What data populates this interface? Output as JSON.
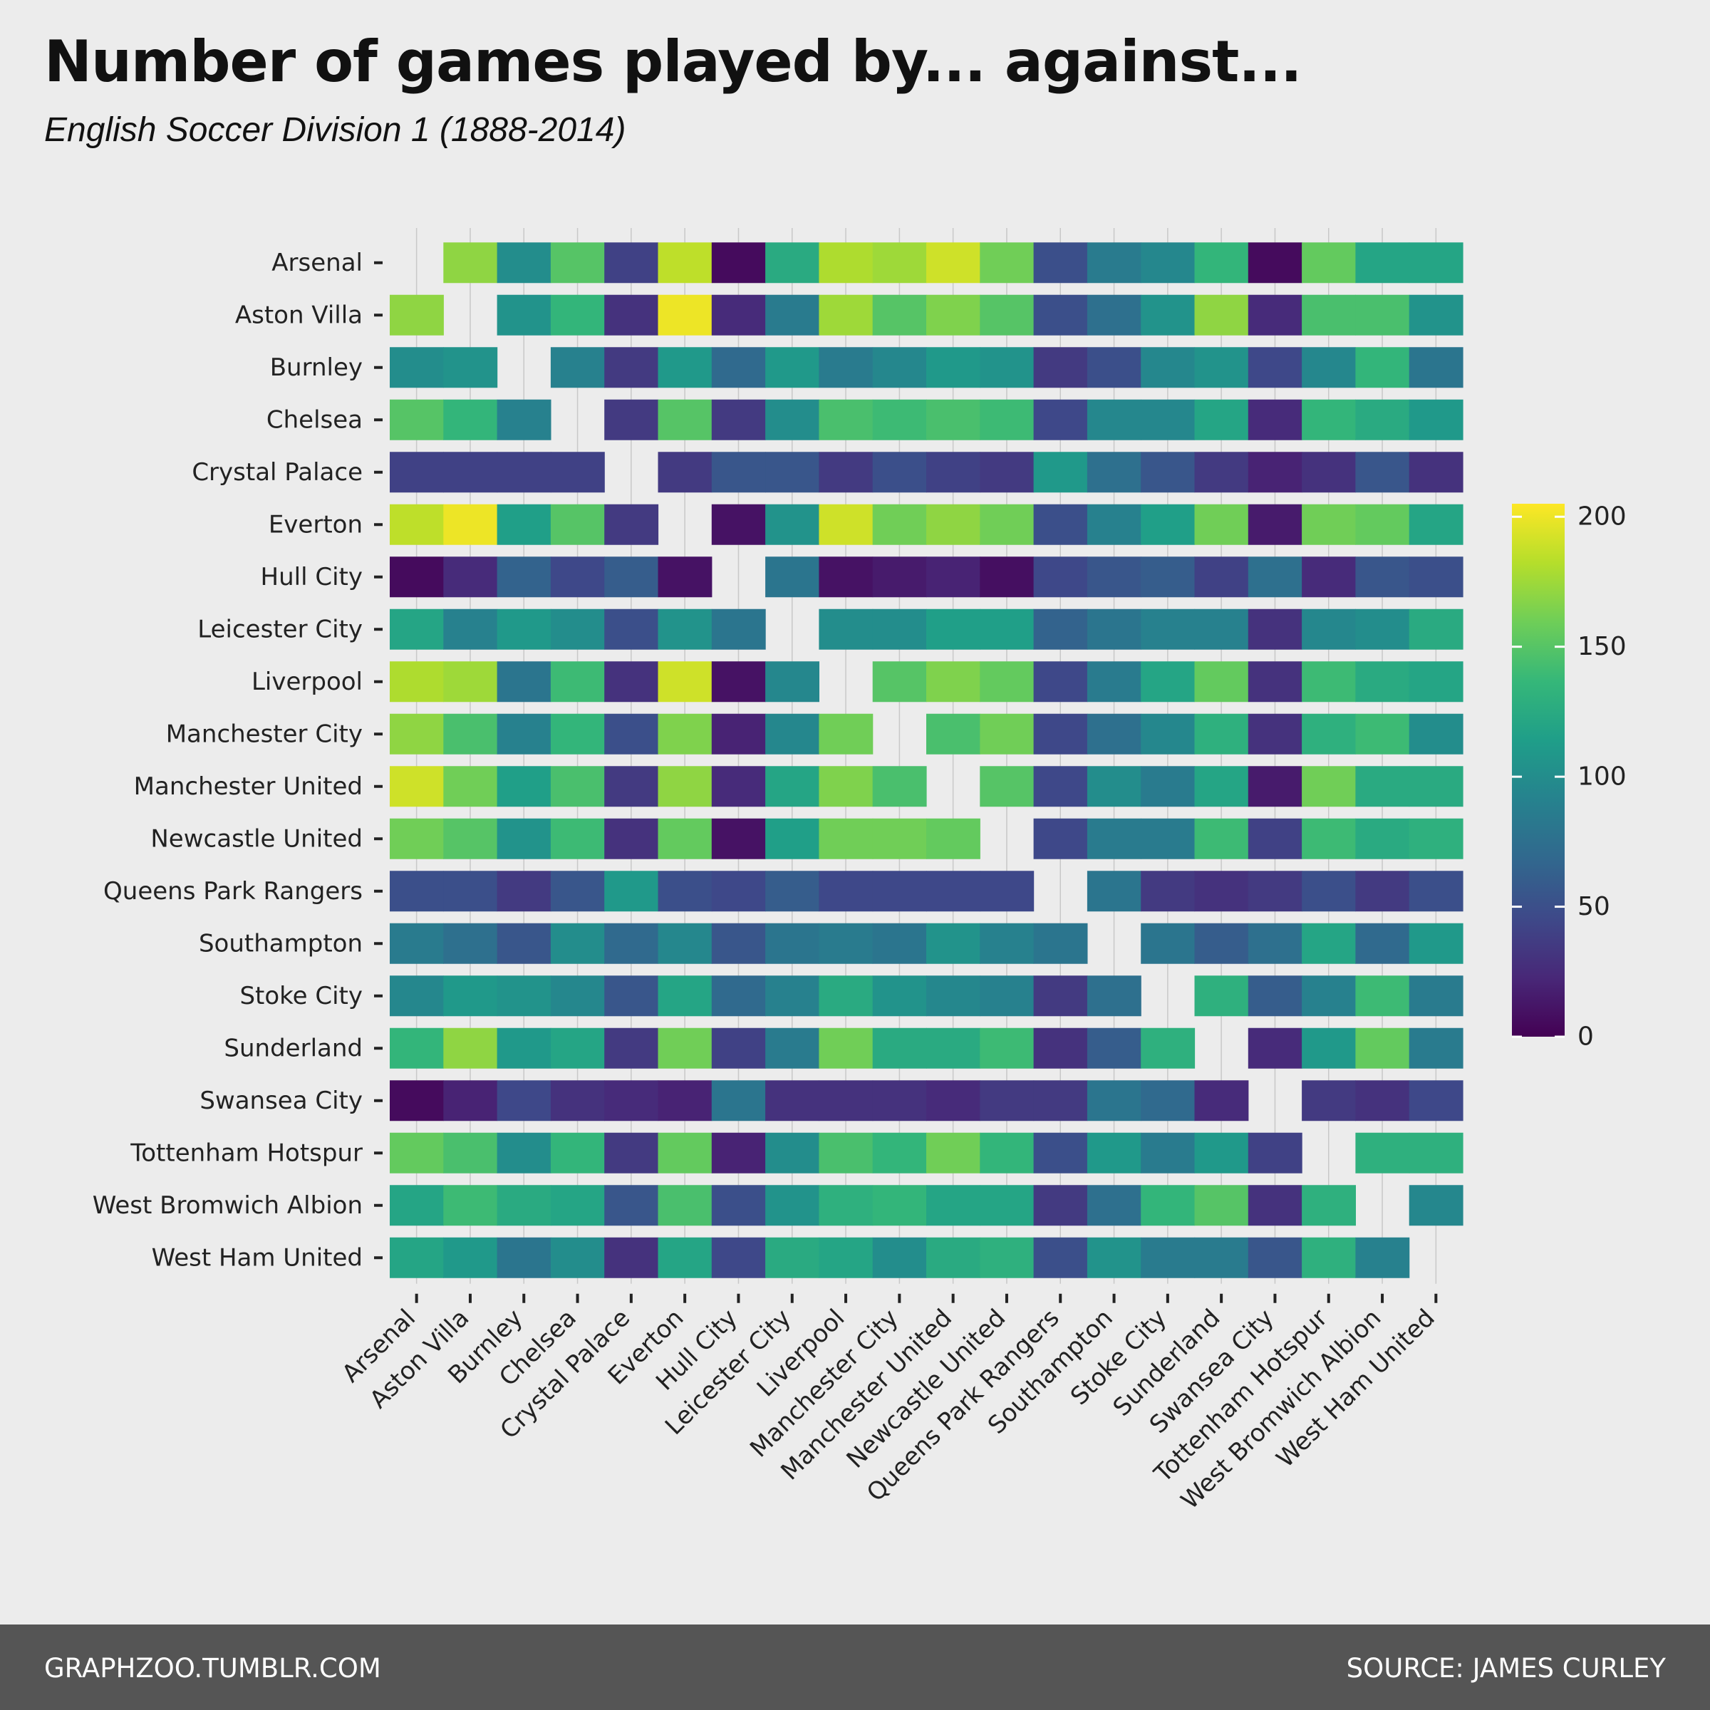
{
  "title": "Number of games played by... against...",
  "subtitle": "English Soccer Division 1 (1888-2014)",
  "footer": {
    "left": "GRAPHZOO.TUMBLR.COM",
    "right": "SOURCE: JAMES CURLEY"
  },
  "chart_data": {
    "type": "heatmap",
    "teams": [
      "Arsenal",
      "Aston Villa",
      "Burnley",
      "Chelsea",
      "Crystal Palace",
      "Everton",
      "Hull City",
      "Leicester City",
      "Liverpool",
      "Manchester City",
      "Manchester United",
      "Newcastle United",
      "Queens Park Rangers",
      "Southampton",
      "Stoke City",
      "Sunderland",
      "Swansea City",
      "Tottenham Hotspur",
      "West Bromwich Albion",
      "West Ham United"
    ],
    "x_categories": [
      "Arsenal",
      "Aston Villa",
      "Burnley",
      "Chelsea",
      "Crystal Palace",
      "Everton",
      "Hull City",
      "Leicester City",
      "Liverpool",
      "Manchester City",
      "Manchester United",
      "Newcastle United",
      "Queens Park Rangers",
      "Southampton",
      "Stoke City",
      "Sunderland",
      "Swansea City",
      "Tottenham Hotspur",
      "West Bromwich Albion",
      "West Ham United"
    ],
    "y_categories": [
      "Arsenal",
      "Aston Villa",
      "Burnley",
      "Chelsea",
      "Crystal Palace",
      "Everton",
      "Hull City",
      "Leicester City",
      "Liverpool",
      "Manchester City",
      "Manchester United",
      "Newcastle United",
      "Queens Park Rangers",
      "Southampton",
      "Stoke City",
      "Sunderland",
      "Swansea City",
      "Tottenham Hotspur",
      "West Bromwich Albion",
      "West Ham United"
    ],
    "values": [
      [
        null,
        170,
        100,
        150,
        40,
        185,
        6,
        125,
        180,
        175,
        190,
        160,
        50,
        85,
        95,
        135,
        6,
        155,
        120,
        120
      ],
      [
        170,
        null,
        105,
        135,
        30,
        200,
        25,
        85,
        175,
        150,
        165,
        150,
        50,
        75,
        105,
        170,
        25,
        145,
        145,
        105
      ],
      [
        100,
        105,
        null,
        90,
        35,
        110,
        70,
        110,
        85,
        95,
        110,
        105,
        35,
        50,
        95,
        105,
        45,
        95,
        135,
        80
      ],
      [
        150,
        135,
        90,
        null,
        35,
        150,
        35,
        100,
        145,
        140,
        145,
        140,
        45,
        95,
        95,
        120,
        25,
        135,
        125,
        110
      ],
      [
        40,
        40,
        40,
        40,
        null,
        35,
        55,
        55,
        35,
        50,
        40,
        35,
        110,
        75,
        55,
        35,
        20,
        30,
        55,
        30
      ],
      [
        185,
        200,
        115,
        150,
        35,
        null,
        10,
        105,
        190,
        160,
        170,
        160,
        50,
        90,
        115,
        160,
        15,
        160,
        155,
        120
      ],
      [
        6,
        25,
        65,
        45,
        60,
        10,
        null,
        80,
        10,
        15,
        20,
        8,
        45,
        55,
        60,
        40,
        75,
        25,
        55,
        50
      ],
      [
        120,
        90,
        110,
        100,
        50,
        105,
        80,
        null,
        100,
        100,
        115,
        115,
        65,
        80,
        90,
        90,
        30,
        95,
        100,
        125
      ],
      [
        180,
        175,
        80,
        140,
        30,
        190,
        10,
        95,
        null,
        150,
        165,
        155,
        45,
        85,
        120,
        155,
        30,
        140,
        125,
        120
      ],
      [
        170,
        145,
        90,
        135,
        50,
        165,
        20,
        95,
        160,
        null,
        145,
        160,
        45,
        75,
        95,
        130,
        30,
        130,
        140,
        100
      ],
      [
        190,
        160,
        115,
        145,
        35,
        170,
        25,
        120,
        165,
        145,
        null,
        150,
        45,
        100,
        85,
        120,
        15,
        160,
        125,
        125
      ],
      [
        160,
        150,
        105,
        140,
        30,
        155,
        10,
        115,
        160,
        160,
        155,
        null,
        45,
        85,
        85,
        140,
        40,
        140,
        125,
        130
      ],
      [
        50,
        50,
        35,
        55,
        110,
        50,
        45,
        60,
        45,
        45,
        45,
        45,
        null,
        80,
        35,
        30,
        35,
        50,
        35,
        50
      ],
      [
        85,
        75,
        55,
        100,
        70,
        95,
        55,
        80,
        85,
        80,
        105,
        90,
        80,
        null,
        80,
        60,
        75,
        120,
        70,
        110
      ],
      [
        95,
        110,
        105,
        95,
        55,
        120,
        70,
        90,
        125,
        105,
        95,
        90,
        35,
        75,
        null,
        130,
        60,
        90,
        140,
        85
      ],
      [
        135,
        170,
        110,
        120,
        35,
        160,
        40,
        85,
        160,
        125,
        125,
        140,
        30,
        60,
        130,
        null,
        25,
        110,
        155,
        85
      ],
      [
        6,
        20,
        45,
        30,
        25,
        20,
        80,
        30,
        30,
        30,
        25,
        35,
        35,
        80,
        70,
        25,
        null,
        35,
        30,
        45
      ],
      [
        155,
        145,
        100,
        135,
        35,
        155,
        20,
        100,
        145,
        135,
        160,
        135,
        50,
        110,
        85,
        110,
        40,
        null,
        130,
        130
      ],
      [
        120,
        140,
        125,
        120,
        55,
        145,
        50,
        105,
        130,
        135,
        120,
        120,
        35,
        75,
        135,
        150,
        30,
        130,
        null,
        95
      ],
      [
        120,
        110,
        80,
        100,
        30,
        120,
        45,
        125,
        120,
        100,
        125,
        130,
        50,
        105,
        85,
        85,
        55,
        130,
        90,
        null
      ]
    ],
    "color_scale": {
      "name": "viridis",
      "min": 0,
      "max": 205,
      "stops": [
        "#440154",
        "#482878",
        "#3e4989",
        "#31688e",
        "#26828e",
        "#1f9e89",
        "#35b779",
        "#6ece58",
        "#b5de2b",
        "#fde725"
      ]
    },
    "legend": {
      "position": "right",
      "ticks": [
        0,
        50,
        100,
        150,
        200
      ]
    },
    "xlabel": "",
    "ylabel": "",
    "grid": true
  }
}
